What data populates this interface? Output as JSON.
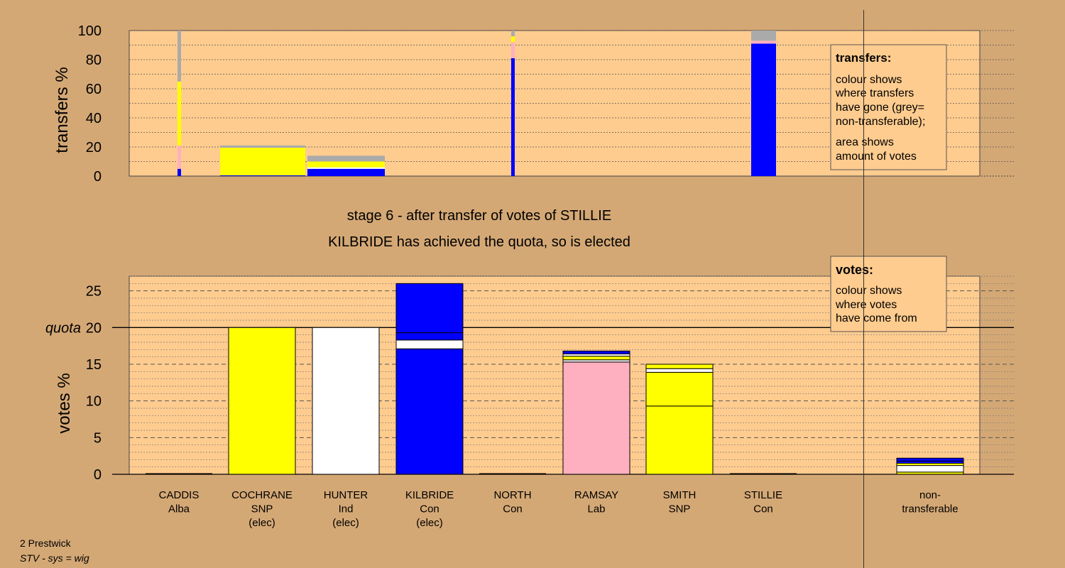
{
  "heading": {
    "stage": "stage 6 - after transfer of votes of STILLIE",
    "status": "KILBRIDE has achieved the quota, so is elected"
  },
  "colors": {
    "background": "#d4a875",
    "plot": "#ffcc8f",
    "Con": "#0000ff",
    "SNP": "#ffff00",
    "Ind": "#ffffff",
    "Lab": "#ffb0c0",
    "nontransferable": "#aaaaaa"
  },
  "legend_transfers": {
    "title": "transfers:",
    "lines": [
      "colour shows",
      "where transfers",
      "have gone (grey=",
      "non-transferable);"
    ],
    "lines2": [
      "area shows",
      "amount of votes"
    ]
  },
  "legend_votes": {
    "title": "votes:",
    "lines": [
      "colour shows",
      "where votes",
      "have come from"
    ]
  },
  "chart_data": [
    {
      "type": "bar",
      "name": "transfers",
      "ylabel": "transfers %",
      "ylim": [
        0,
        100
      ],
      "yticks": [
        0,
        20,
        40,
        60,
        80,
        100
      ],
      "bars": [
        {
          "candidate": "CADDIS",
          "segments": [
            {
              "party": "Con",
              "value": 5
            },
            {
              "party": "Lab",
              "value": 16
            },
            {
              "party": "SNP",
              "value": 44
            },
            {
              "party": "nontransferable",
              "value": 35
            }
          ]
        },
        {
          "candidate": "COCHRANE",
          "segments": [
            {
              "party": "Con",
              "value": 0.5
            },
            {
              "party": "SNP",
              "value": 19
            },
            {
              "party": "nontransferable",
              "value": 1.5
            }
          ]
        },
        {
          "candidate": "HUNTER",
          "segments": [
            {
              "party": "Con",
              "value": 5
            },
            {
              "party": "Ind",
              "value": 1
            },
            {
              "party": "SNP",
              "value": 4
            },
            {
              "party": "nontransferable",
              "value": 4
            }
          ]
        },
        {
          "candidate": "NORTH",
          "segments": [
            {
              "party": "Con",
              "value": 81
            },
            {
              "party": "Lab",
              "value": 11
            },
            {
              "party": "SNP",
              "value": 4
            },
            {
              "party": "nontransferable",
              "value": 4
            }
          ]
        },
        {
          "candidate": "STILLIE",
          "segments": [
            {
              "party": "Con",
              "value": 91
            },
            {
              "party": "Lab",
              "value": 2
            },
            {
              "party": "nontransferable",
              "value": 7
            }
          ]
        }
      ]
    },
    {
      "type": "bar",
      "name": "votes",
      "ylabel": "votes %",
      "ylim": [
        0,
        27
      ],
      "yticks": [
        0,
        5,
        10,
        15,
        20,
        25
      ],
      "quota": 20,
      "quota_label": "quota",
      "candidates": [
        {
          "name": "CADDIS",
          "party": "Alba",
          "elected": "",
          "segments": []
        },
        {
          "name": "COCHRANE",
          "party": "SNP",
          "elected": "(elec)",
          "segments": [
            {
              "party": "SNP",
              "value": 20
            }
          ]
        },
        {
          "name": "HUNTER",
          "party": "Ind",
          "elected": "(elec)",
          "segments": [
            {
              "party": "Ind",
              "value": 20
            }
          ]
        },
        {
          "name": "KILBRIDE",
          "party": "Con",
          "elected": "(elec)",
          "segments": [
            {
              "party": "Con",
              "value": 17.1
            },
            {
              "party": "Ind",
              "value": 1.2
            },
            {
              "party": "Con",
              "value": 1.0
            },
            {
              "party": "Con",
              "value": 6.7
            }
          ]
        },
        {
          "name": "NORTH",
          "party": "Con",
          "elected": "",
          "segments": []
        },
        {
          "name": "RAMSAY",
          "party": "Lab",
          "elected": "",
          "segments": [
            {
              "party": "Lab",
              "value": 15.3
            },
            {
              "party": "Ind",
              "value": 0.3
            },
            {
              "party": "SNP",
              "value": 0.5
            },
            {
              "party": "Ind",
              "value": 0.3
            },
            {
              "party": "Con",
              "value": 0.4
            }
          ]
        },
        {
          "name": "SMITH",
          "party": "SNP",
          "elected": "",
          "segments": [
            {
              "party": "SNP",
              "value": 9.3
            },
            {
              "party": "SNP",
              "value": 4.6
            },
            {
              "party": "Ind",
              "value": 0.5
            },
            {
              "party": "SNP",
              "value": 0.6
            }
          ]
        },
        {
          "name": "STILLIE",
          "party": "Con",
          "elected": "",
          "segments": []
        },
        {
          "name": "non-",
          "party": "transferable",
          "elected": "",
          "segments": [
            {
              "party": "SNP",
              "value": 0.3
            },
            {
              "party": "Ind",
              "value": 0.9
            },
            {
              "party": "SNP",
              "value": 0.3
            },
            {
              "party": "Con",
              "value": 0.3
            },
            {
              "party": "Con",
              "value": 0.4
            }
          ]
        }
      ]
    }
  ],
  "footer": {
    "line1": "2 Prestwick",
    "line2": "STV - sys = wig"
  }
}
